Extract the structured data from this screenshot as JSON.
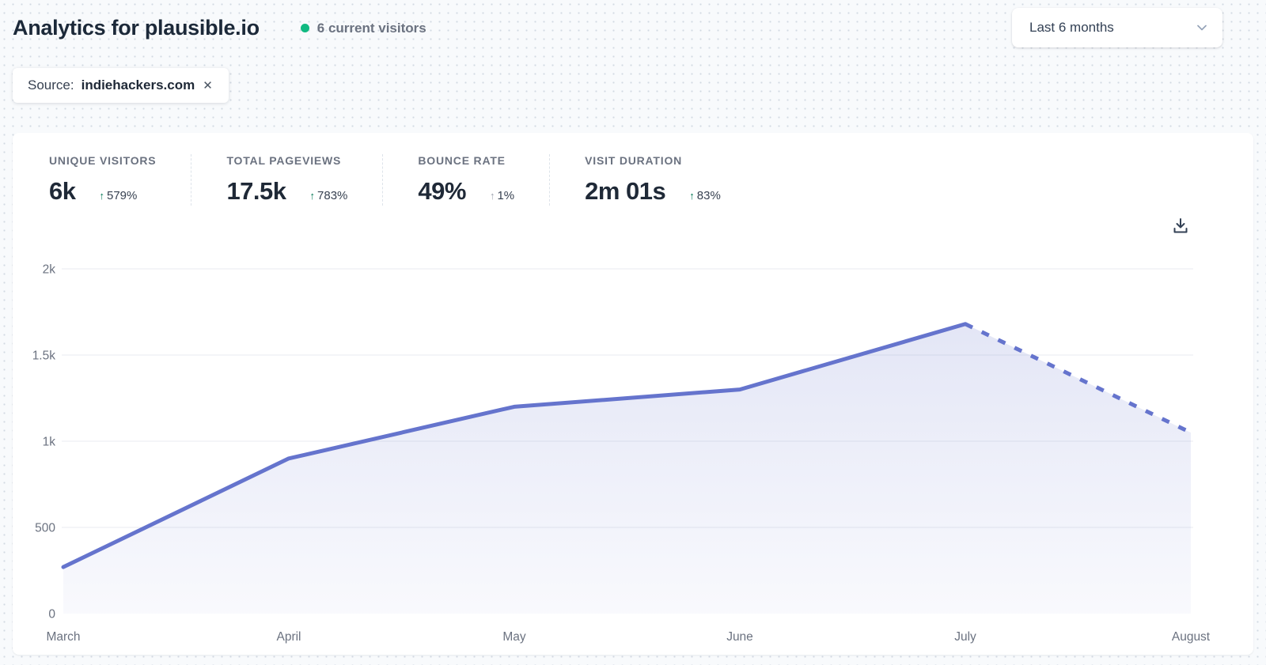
{
  "header": {
    "title": "Analytics for plausible.io",
    "current_visitors": "6 current visitors",
    "visitor_dot_color": "#10b981"
  },
  "toolbar": {
    "date_range_label": "Last 6 months"
  },
  "filter": {
    "prefix": "Source:",
    "value": "indiehackers.com",
    "remove_label": "✕"
  },
  "stats": [
    {
      "label": "UNIQUE VISITORS",
      "value": "6k",
      "change_arrow": "↑",
      "change": "579%",
      "direction": "up",
      "arrow_color": "#047857"
    },
    {
      "label": "TOTAL PAGEVIEWS",
      "value": "17.5k",
      "change_arrow": "↑",
      "change": "783%",
      "direction": "up",
      "arrow_color": "#047857"
    },
    {
      "label": "BOUNCE RATE",
      "value": "49%",
      "change_arrow": "↑",
      "change": "1%",
      "direction": "up",
      "arrow_color": "#9ca3af"
    },
    {
      "label": "VISIT DURATION",
      "value": "2m 01s",
      "change_arrow": "↑",
      "change": "83%",
      "direction": "up",
      "arrow_color": "#047857"
    }
  ],
  "chart_data": {
    "type": "area",
    "x": [
      "March",
      "April",
      "May",
      "June",
      "July",
      "August"
    ],
    "series": [
      {
        "name": "Unique visitors",
        "values": [
          270,
          900,
          1200,
          1300,
          1680,
          1050
        ]
      }
    ],
    "dashed_from_index": 4,
    "ylim": [
      0,
      2000
    ],
    "yticks": [
      {
        "value": 0,
        "label": "0"
      },
      {
        "value": 500,
        "label": "500"
      },
      {
        "value": 1000,
        "label": "1k"
      },
      {
        "value": 1500,
        "label": "1.5k"
      },
      {
        "value": 2000,
        "label": "2k"
      }
    ],
    "line_color": "#6574cd",
    "grid": true,
    "legend": "none"
  }
}
